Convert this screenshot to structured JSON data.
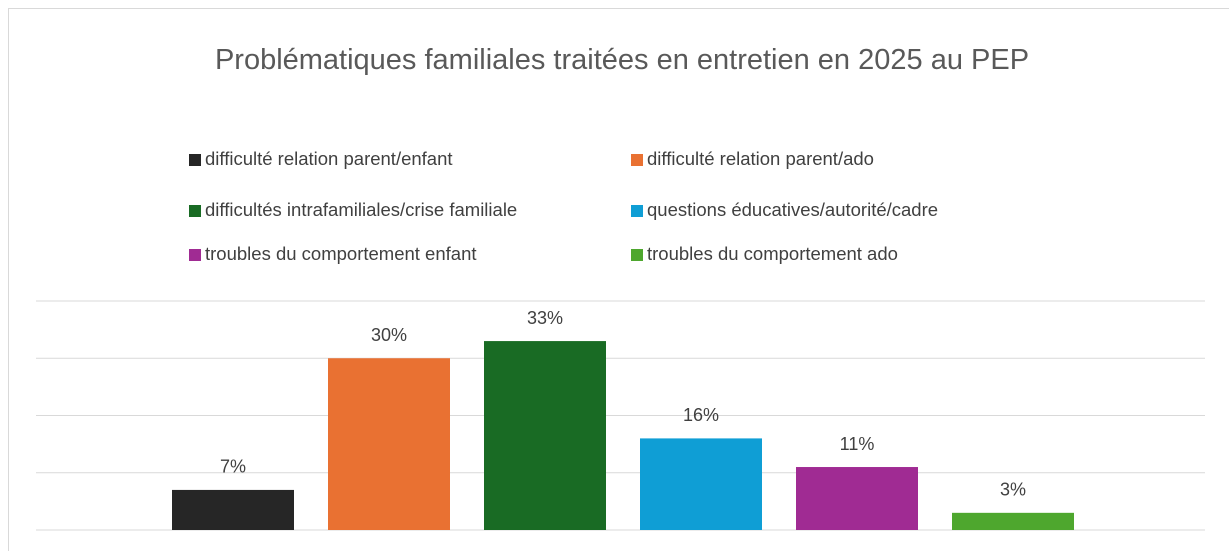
{
  "chart_data": {
    "type": "bar",
    "title": "Problématiques familiales traitées en entretien en 2025 au PEP",
    "series": [
      {
        "name": "difficulté relation parent/enfant",
        "color": "#262626",
        "values": [
          7
        ],
        "value_labels": [
          "7%"
        ]
      },
      {
        "name": "difficulté relation parent/ado",
        "color": "#e97132",
        "values": [
          30
        ],
        "value_labels": [
          "30%"
        ]
      },
      {
        "name": "difficultés intrafamiliales/crise familiale",
        "color": "#196b24",
        "values": [
          33
        ],
        "value_labels": [
          "33%"
        ]
      },
      {
        "name": "questions éducatives/autorité/cadre",
        "color": "#0f9ed5",
        "values": [
          16
        ],
        "value_labels": [
          "16%"
        ]
      },
      {
        "name": "troubles du comportement enfant",
        "color": "#a02b93",
        "values": [
          11
        ],
        "value_labels": [
          "11%"
        ]
      },
      {
        "name": "troubles du comportement ado",
        "color": "#4ea72e",
        "values": [
          3
        ],
        "value_labels": [
          "3%"
        ]
      }
    ],
    "ylim": [
      0,
      40
    ],
    "yticks": [
      0,
      10,
      20,
      30,
      40
    ],
    "grid": true,
    "legend": "top"
  }
}
